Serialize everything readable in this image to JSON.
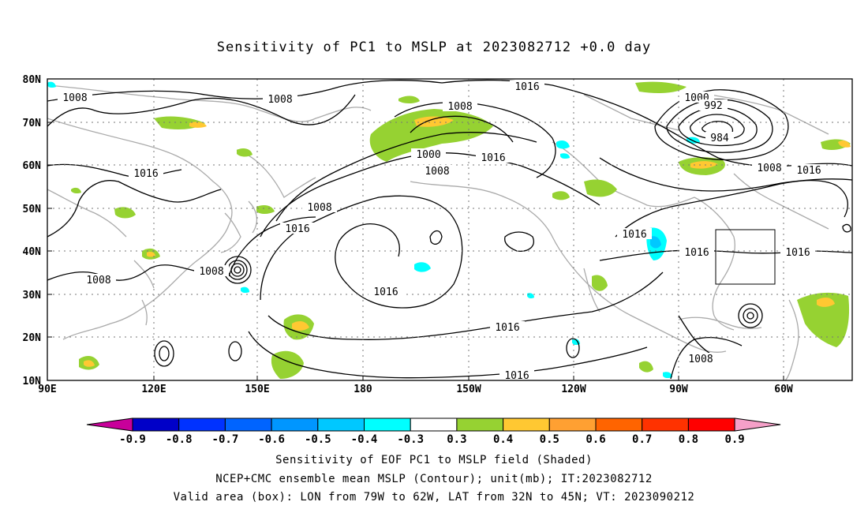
{
  "title": "Sensitivity of PC1 to MSLP at 2023082712 +0.0 day",
  "lat_ticks": [
    "80N",
    "70N",
    "60N",
    "50N",
    "40N",
    "30N",
    "20N",
    "10N"
  ],
  "lon_ticks": [
    "90E",
    "120E",
    "150E",
    "180",
    "150W",
    "120W",
    "90W",
    "60W"
  ],
  "contour_labels": [
    "1008",
    "1008",
    "1016",
    "1008",
    "1016",
    "1016",
    "1008",
    "1008",
    "1000",
    "1008",
    "1016",
    "1016",
    "1016",
    "1016",
    "1008",
    "1000",
    "992",
    "984",
    "1008",
    "1016",
    "1016",
    "1016",
    "1016",
    "1008"
  ],
  "colorbar": {
    "labels": [
      "-0.9",
      "-0.8",
      "-0.7",
      "-0.6",
      "-0.5",
      "-0.4",
      "-0.3",
      "0.3",
      "0.4",
      "0.5",
      "0.6",
      "0.7",
      "0.8",
      "0.9"
    ],
    "colors": [
      "#0000c8",
      "#0032ff",
      "#0064ff",
      "#0096ff",
      "#00c8ff",
      "#00ffff",
      "#ffffff",
      "#96d232",
      "#ffc832",
      "#ffa032",
      "#ff6400",
      "#ff3200",
      "#ff0000"
    ],
    "low_color": "#c8009a",
    "high_color": "#f5a0c8"
  },
  "captions": [
    "Sensitivity of EOF PC1 to MSLP field (Shaded)",
    "NCEP+CMC ensemble mean MSLP (Contour); unit(mb); IT:2023082712",
    "Valid area (box): LON from 79W to 62W, LAT from 32N to 45N; VT: 2023090212"
  ],
  "colors": {
    "coastline": "#aaaaaa",
    "contour": "#000000",
    "positive_shade": "#96d232",
    "strong_positive_shade": "#ffc832",
    "negative_shade": "#00ffff"
  }
}
